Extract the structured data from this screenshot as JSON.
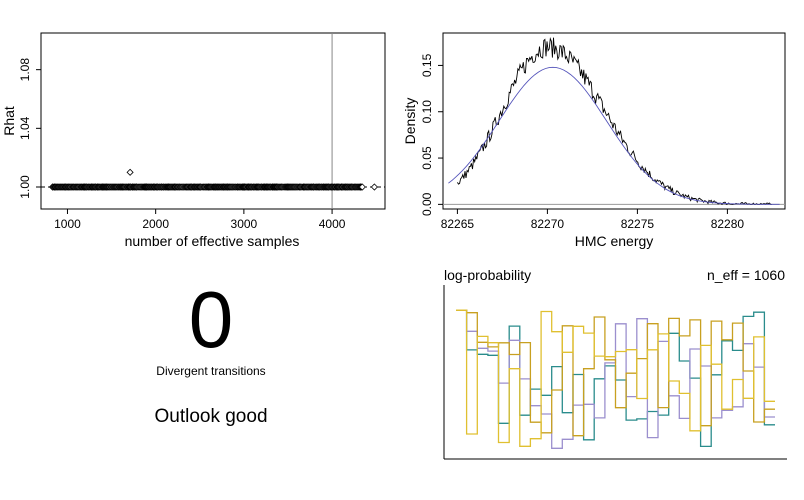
{
  "chart_data": [
    {
      "type": "scatter",
      "xlabel": "number of effective samples",
      "ylabel": "Rhat",
      "xlim": [
        700,
        4600
      ],
      "ylim": [
        0.985,
        1.105
      ],
      "xticks": [
        1000,
        2000,
        3000,
        4000
      ],
      "yticks": [
        1.0,
        1.04,
        1.08
      ],
      "ytick_labels": [
        "1.00",
        "1.04",
        "1.08"
      ],
      "reference_line_x": 4000,
      "points_band": {
        "x_min": 830,
        "x_max": 4350,
        "y": 1.0
      },
      "extra_points": [
        {
          "x": 4480,
          "y": 1.0
        },
        {
          "x": 1710,
          "y": 1.01
        }
      ]
    },
    {
      "type": "line",
      "xlabel": "HMC energy",
      "ylabel": "Density",
      "xlim": [
        82264.2,
        82283.2
      ],
      "ylim": [
        -0.005,
        0.185
      ],
      "xticks": [
        82265,
        82270,
        82275,
        82280
      ],
      "yticks": [
        0.0,
        0.05,
        0.1,
        0.15
      ],
      "ytick_labels": [
        "0.00",
        "0.05",
        "0.10",
        "0.15"
      ],
      "series": [
        {
          "kind": "empirical-density",
          "mean": 82270,
          "sd": 2.5,
          "peak": 0.17
        },
        {
          "kind": "normal-overlay",
          "mean": 82270.3,
          "sd": 3.0,
          "peak": 0.148
        }
      ],
      "colors": {
        "empirical": "#000000",
        "overlay": "#5555bb"
      }
    },
    {
      "type": "line",
      "title": "log-probability",
      "annotation": "n_eff = 1060",
      "colors": [
        "#2a8c8c",
        "#9b8fce",
        "#c8a020",
        "#e0c030"
      ]
    }
  ],
  "divergence": {
    "count": "0",
    "label": "Divergent transitions",
    "verdict": "Outlook good"
  }
}
